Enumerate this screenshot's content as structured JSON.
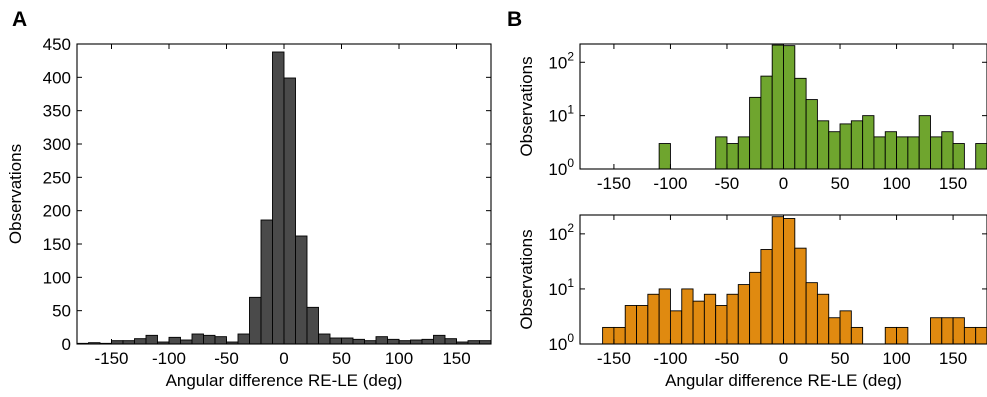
{
  "panel_letters": [
    "A",
    "B"
  ],
  "chart_data": [
    {
      "panel": "A",
      "type": "bar",
      "xlabel": "Angular difference RE-LE (deg)",
      "ylabel": "Observations",
      "xlim": [
        -180,
        180
      ],
      "ylim": [
        0,
        450
      ],
      "xticks": [
        -150,
        -100,
        -50,
        0,
        50,
        100,
        150
      ],
      "xtick_labels": [
        "-150",
        "-100",
        "-50",
        "0",
        "50",
        "100",
        "150"
      ],
      "yticks": [
        0,
        50,
        100,
        150,
        200,
        250,
        300,
        350,
        400,
        450
      ],
      "ytick_labels": [
        "0",
        "50",
        "100",
        "150",
        "200",
        "250",
        "300",
        "350",
        "400",
        "450"
      ],
      "bar_color": "#4a4a4a",
      "bin_width": 10,
      "bin_centers": [
        -175,
        -165,
        -155,
        -145,
        -135,
        -125,
        -115,
        -105,
        -95,
        -85,
        -75,
        -65,
        -55,
        -45,
        -35,
        -25,
        -15,
        -5,
        5,
        15,
        25,
        35,
        45,
        55,
        65,
        75,
        85,
        95,
        105,
        115,
        125,
        135,
        145,
        155,
        165,
        175
      ],
      "values": [
        1,
        2,
        1,
        5,
        5,
        8,
        13,
        3,
        10,
        6,
        15,
        13,
        11,
        3,
        15,
        70,
        186,
        438,
        399,
        162,
        55,
        15,
        9,
        9,
        7,
        5,
        11,
        7,
        5,
        6,
        7,
        13,
        8,
        3,
        5,
        5
      ]
    },
    {
      "panel": "B-top",
      "type": "bar",
      "xlabel": "",
      "ylabel": "Observations",
      "yscale": "log",
      "xlim": [
        -180,
        180
      ],
      "ylim": [
        1,
        220
      ],
      "xticks": [
        -150,
        -100,
        -50,
        0,
        50,
        100,
        150
      ],
      "xtick_labels": [
        "-150",
        "-100",
        "-50",
        "0",
        "50",
        "100",
        "150"
      ],
      "yticks": [
        1,
        10,
        100
      ],
      "ytick_labels": [
        {
          "base": "10",
          "exp": "0"
        },
        {
          "base": "10",
          "exp": "1"
        },
        {
          "base": "10",
          "exp": "2"
        }
      ],
      "bar_color": "#6fa52e",
      "bin_width": 10,
      "bin_centers": [
        -175,
        -165,
        -155,
        -145,
        -135,
        -125,
        -115,
        -105,
        -95,
        -85,
        -75,
        -65,
        -55,
        -45,
        -35,
        -25,
        -15,
        -5,
        5,
        15,
        25,
        35,
        45,
        55,
        65,
        75,
        85,
        95,
        105,
        115,
        125,
        135,
        145,
        155,
        165,
        175
      ],
      "values": [
        0,
        0,
        0,
        0,
        0,
        0,
        0,
        3,
        0,
        0,
        0,
        0,
        4,
        3,
        4,
        22,
        55,
        210,
        205,
        50,
        20,
        8,
        5,
        7,
        8,
        10,
        4,
        5,
        4,
        4,
        10,
        4,
        5,
        3,
        0,
        3
      ]
    },
    {
      "panel": "B-bottom",
      "type": "bar",
      "xlabel": "Angular difference RE-LE (deg)",
      "ylabel": "Observations",
      "yscale": "log",
      "xlim": [
        -180,
        180
      ],
      "ylim": [
        1,
        220
      ],
      "xticks": [
        -150,
        -100,
        -50,
        0,
        50,
        100,
        150
      ],
      "xtick_labels": [
        "-150",
        "-100",
        "-50",
        "0",
        "50",
        "100",
        "150"
      ],
      "yticks": [
        1,
        10,
        100
      ],
      "ytick_labels": [
        {
          "base": "10",
          "exp": "0"
        },
        {
          "base": "10",
          "exp": "1"
        },
        {
          "base": "10",
          "exp": "2"
        }
      ],
      "bar_color": "#e08a10",
      "bin_width": 10,
      "bin_centers": [
        -175,
        -165,
        -155,
        -145,
        -135,
        -125,
        -115,
        -105,
        -95,
        -85,
        -75,
        -65,
        -55,
        -45,
        -35,
        -25,
        -15,
        -5,
        5,
        15,
        25,
        35,
        45,
        55,
        65,
        75,
        85,
        95,
        105,
        115,
        125,
        135,
        145,
        155,
        165,
        175
      ],
      "values": [
        0,
        0,
        2,
        2,
        5,
        5,
        8,
        10,
        4,
        10,
        6,
        8,
        5,
        8,
        12,
        20,
        52,
        205,
        190,
        55,
        13,
        8,
        3,
        4,
        2,
        0,
        0,
        2,
        2,
        0,
        0,
        3,
        3,
        3,
        2,
        2
      ]
    }
  ]
}
